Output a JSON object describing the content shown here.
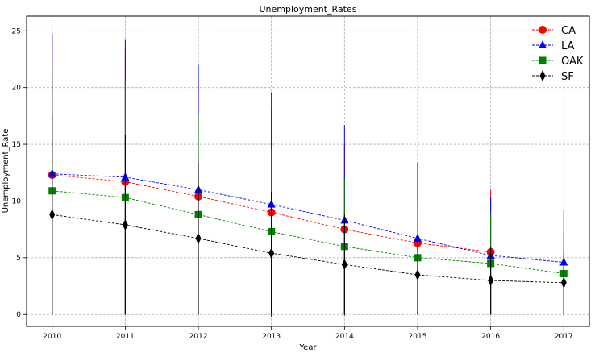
{
  "chart_data": {
    "type": "line",
    "title": "Unemployment_Rates",
    "xlabel": "Year",
    "ylabel": "Unemployment_Rate",
    "x": [
      2010,
      2011,
      2012,
      2013,
      2014,
      2015,
      2016,
      2017
    ],
    "xlim": [
      2009.65,
      2017.35
    ],
    "ylim": [
      -1.05,
      26.3
    ],
    "x_ticks": [
      2010,
      2011,
      2012,
      2013,
      2014,
      2015,
      2016,
      2017
    ],
    "y_ticks": [
      0,
      5,
      10,
      15,
      20,
      25
    ],
    "grid": true,
    "legend_position": "top-right",
    "series": [
      {
        "name": "CA",
        "color": "#ff0000",
        "marker": "circle",
        "values": [
          12.3,
          11.7,
          10.4,
          9.0,
          7.5,
          6.3,
          5.5,
          null
        ],
        "errors": [
          12.3,
          11.7,
          10.4,
          9.0,
          7.5,
          6.3,
          5.5,
          null
        ]
      },
      {
        "name": "LA",
        "color": "#0000ff",
        "marker": "triangle",
        "values": [
          12.4,
          12.1,
          11.0,
          9.7,
          8.3,
          6.7,
          5.2,
          4.6
        ],
        "errors": [
          12.4,
          12.1,
          11.0,
          9.9,
          8.4,
          6.7,
          5.2,
          4.6
        ]
      },
      {
        "name": "OAK",
        "color": "#008000",
        "marker": "square",
        "values": [
          10.9,
          10.3,
          8.8,
          7.3,
          6.0,
          5.0,
          4.5,
          3.6
        ],
        "errors": [
          10.9,
          10.3,
          8.8,
          7.3,
          6.0,
          5.0,
          4.5,
          3.6
        ]
      },
      {
        "name": "SF",
        "color": "#000000",
        "marker": "diamond",
        "values": [
          8.8,
          7.9,
          6.7,
          5.4,
          4.4,
          3.5,
          3.0,
          2.8
        ],
        "errors": [
          8.8,
          7.9,
          6.7,
          5.4,
          4.4,
          3.5,
          3.0,
          2.8
        ]
      }
    ]
  }
}
